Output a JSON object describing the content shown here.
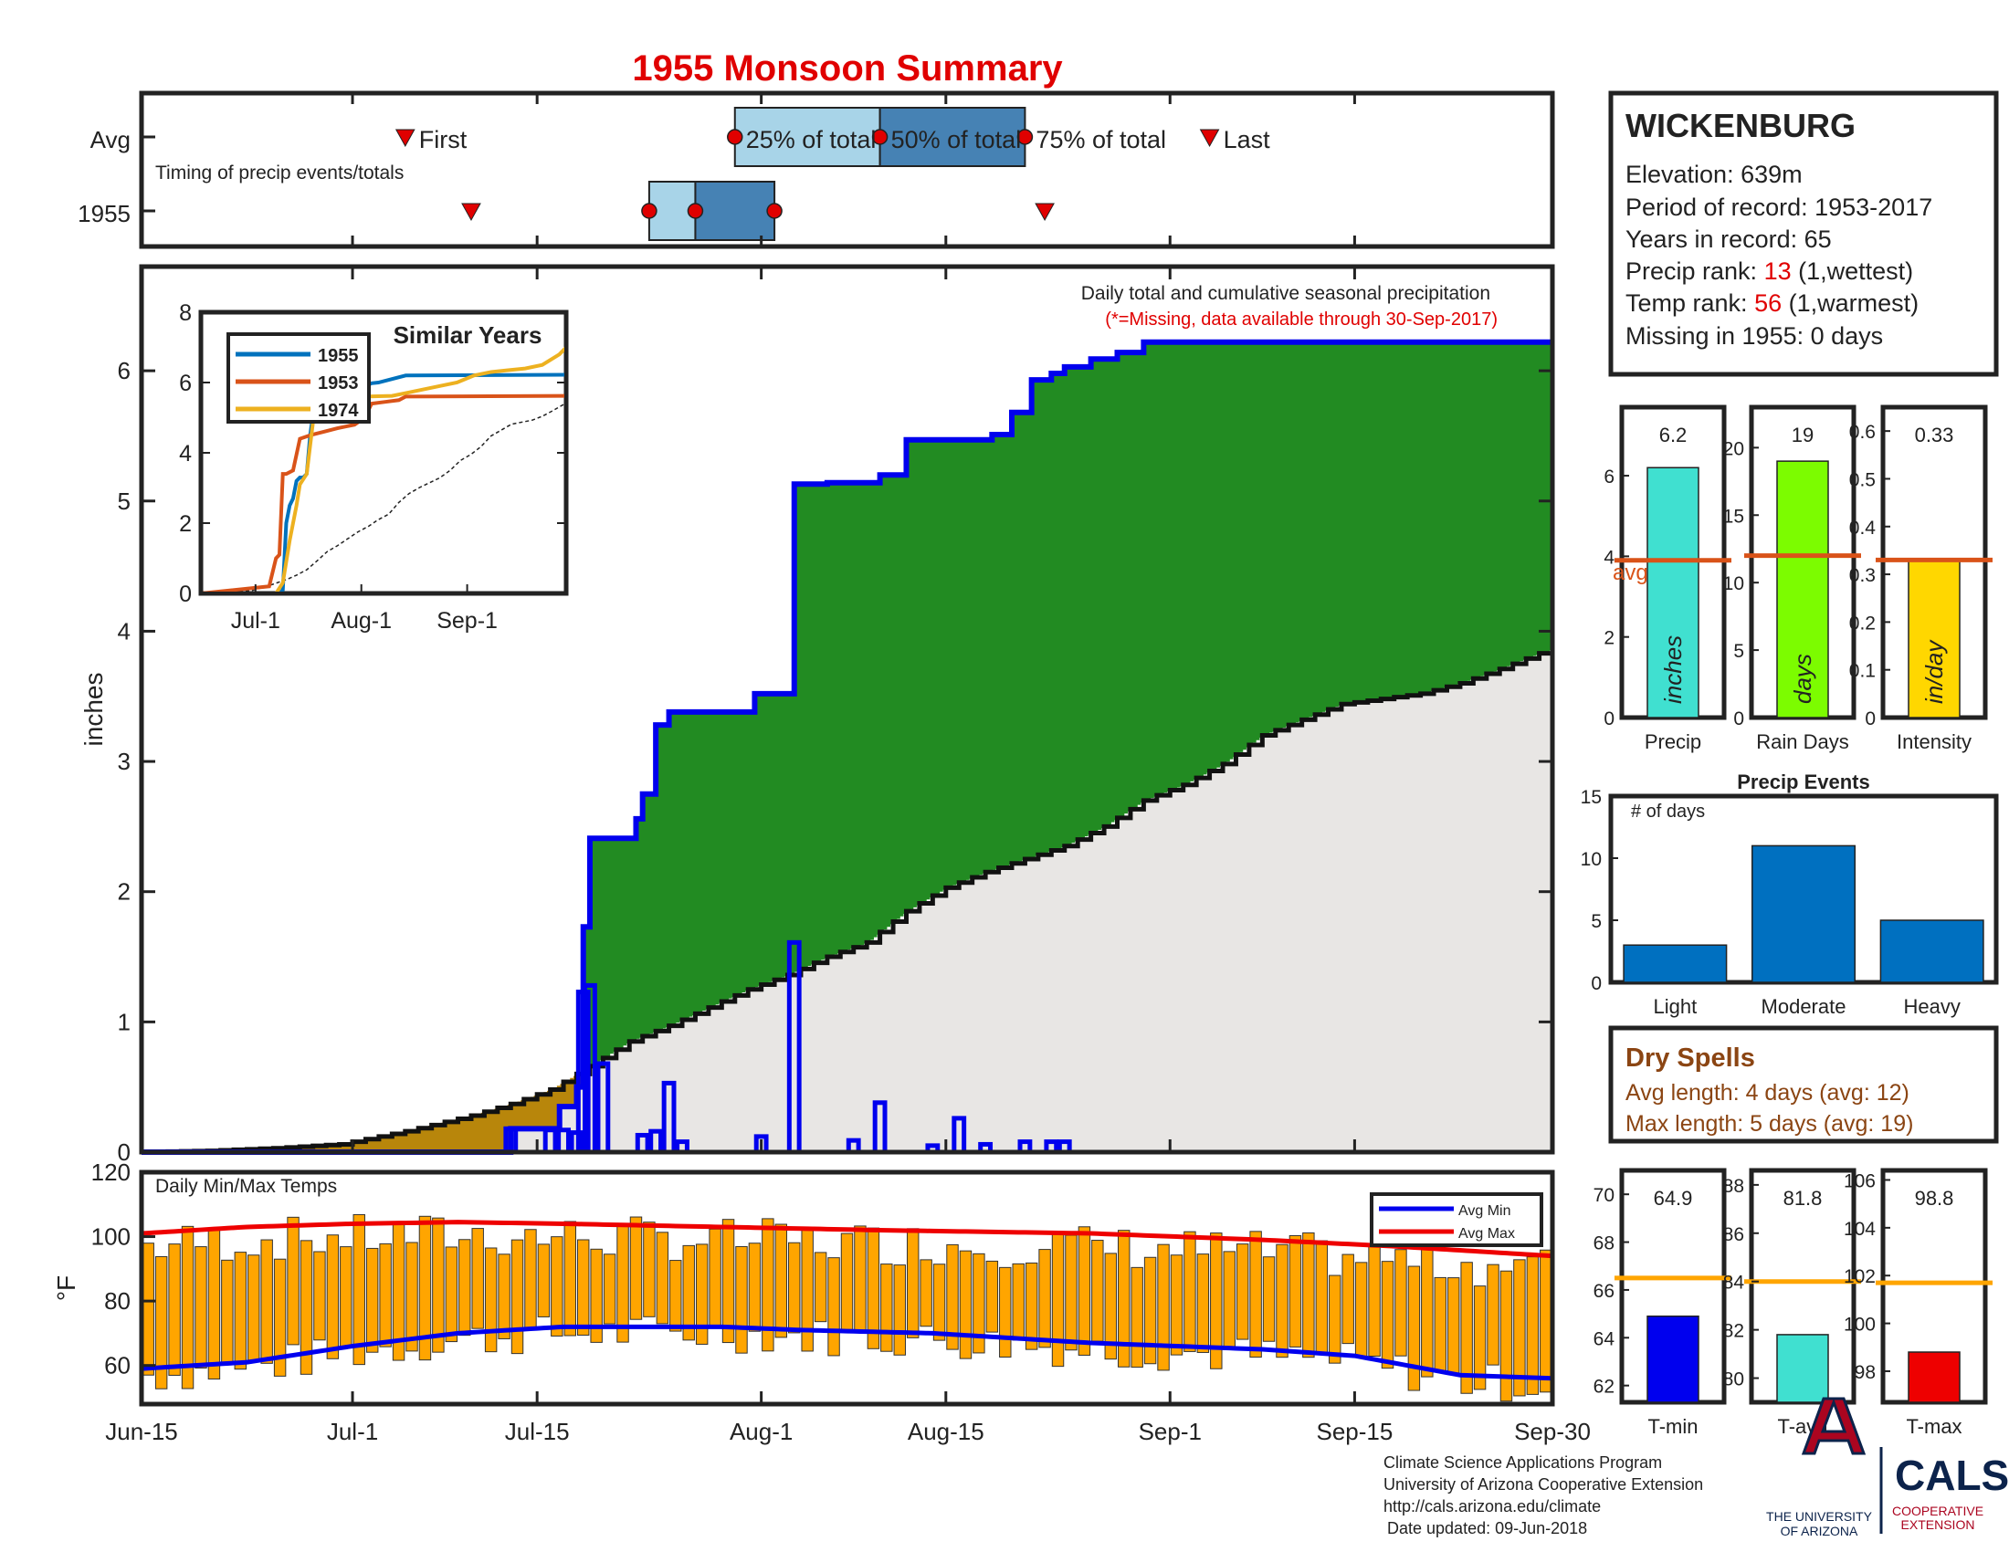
{
  "title": "1955 Monsoon Summary",
  "colors": {
    "green": "#228b22",
    "gray": "#e8e6e4",
    "brown": "#b8860b",
    "blue": "#0000ee",
    "orange": "#ffa500",
    "avgred": "#ee0000",
    "light": "#a8d4e8",
    "dark": "#4682b4",
    "barblue": "#0070c0",
    "avgline": "#d95319"
  },
  "timing": {
    "rows": [
      "Avg",
      "1955"
    ],
    "note": "Timing of precip events/totals",
    "avg_labels": {
      "first": "First",
      "p25": "25% of total",
      "p50": "50% of total",
      "p75": "75% of total",
      "last": "Last"
    },
    "avg_days": {
      "first": 20,
      "p25": 45,
      "p50": 56,
      "p75": 67,
      "last": 81
    },
    "y1955_days": {
      "first": 25,
      "p25": 38.5,
      "p50": 42,
      "p75": 48,
      "last": 68.5
    },
    "box_avg": [
      45,
      67
    ],
    "box_1955": [
      38.5,
      48
    ]
  },
  "station": {
    "name": "WICKENBURG",
    "elevation": "Elevation: 639m",
    "period": "Period of record: 1953-2017",
    "years": "Years in record: 65",
    "precip_rank_label": "Precip rank: ",
    "precip_rank": "13",
    "precip_rank_note": " (1,wettest)",
    "temp_rank_label": "Temp rank: ",
    "temp_rank": "56",
    "temp_rank_note": " (1,warmest)",
    "missing": "Missing in 1955: 0 days"
  },
  "main": {
    "note": "Daily total and cumulative seasonal precipitation",
    "note_missing": "(*=Missing, data available through 30-Sep-2017)",
    "ylabel": "inches",
    "ylim": [
      0,
      6.8
    ],
    "yticks": [
      0,
      1,
      2,
      3,
      4,
      5,
      6
    ],
    "xticks": [
      {
        "d": 0,
        "l": "Jun-15"
      },
      {
        "d": 16,
        "l": "Jul-1"
      },
      {
        "d": 30,
        "l": "Jul-15"
      },
      {
        "d": 47,
        "l": "Aug-1"
      },
      {
        "d": 61,
        "l": "Aug-15"
      },
      {
        "d": 78,
        "l": "Sep-1"
      },
      {
        "d": 92,
        "l": "Sep-15"
      },
      {
        "d": 107,
        "l": "Sep-30"
      }
    ]
  },
  "chart_data": {
    "type": "area",
    "days_total": 107,
    "cum_1955": [
      [
        0,
        0
      ],
      [
        28,
        0
      ],
      [
        28,
        0.18
      ],
      [
        31.7,
        0.18
      ],
      [
        31.7,
        0.35
      ],
      [
        33,
        0.35
      ],
      [
        33,
        0.5
      ],
      [
        33.5,
        0.5
      ],
      [
        33.5,
        1.73
      ],
      [
        34,
        1.73
      ],
      [
        34,
        2.41
      ],
      [
        37.5,
        2.41
      ],
      [
        37.5,
        2.56
      ],
      [
        38,
        2.56
      ],
      [
        38,
        2.75
      ],
      [
        39,
        2.75
      ],
      [
        39,
        3.28
      ],
      [
        40,
        3.28
      ],
      [
        40,
        3.38
      ],
      [
        46.5,
        3.38
      ],
      [
        46.5,
        3.52
      ],
      [
        49.5,
        3.52
      ],
      [
        49.5,
        5.13
      ],
      [
        52,
        5.13
      ],
      [
        52,
        5.14
      ],
      [
        56,
        5.14
      ],
      [
        56,
        5.2
      ],
      [
        58,
        5.2
      ],
      [
        58,
        5.47
      ],
      [
        64.5,
        5.47
      ],
      [
        64.5,
        5.51
      ],
      [
        66,
        5.51
      ],
      [
        66,
        5.68
      ],
      [
        67.5,
        5.68
      ],
      [
        67.5,
        5.93
      ],
      [
        69,
        5.93
      ],
      [
        69,
        5.98
      ],
      [
        70,
        5.98
      ],
      [
        70,
        6.03
      ],
      [
        72,
        6.03
      ],
      [
        72,
        6.09
      ],
      [
        74,
        6.09
      ],
      [
        74,
        6.14
      ],
      [
        76,
        6.14
      ],
      [
        76,
        6.22
      ],
      [
        107,
        6.22
      ]
    ],
    "cum_avg": [
      [
        0,
        0
      ],
      [
        5,
        0.01
      ],
      [
        10,
        0.03
      ],
      [
        15,
        0.06
      ],
      [
        20,
        0.16
      ],
      [
        25,
        0.28
      ],
      [
        28,
        0.37
      ],
      [
        31,
        0.48
      ],
      [
        34,
        0.66
      ],
      [
        37,
        0.85
      ],
      [
        40,
        0.97
      ],
      [
        43,
        1.11
      ],
      [
        46,
        1.25
      ],
      [
        49,
        1.36
      ],
      [
        52,
        1.5
      ],
      [
        55,
        1.61
      ],
      [
        58,
        1.85
      ],
      [
        61,
        2.03
      ],
      [
        64,
        2.15
      ],
      [
        67,
        2.25
      ],
      [
        70,
        2.35
      ],
      [
        73,
        2.5
      ],
      [
        76,
        2.7
      ],
      [
        79,
        2.82
      ],
      [
        82,
        2.98
      ],
      [
        85,
        3.2
      ],
      [
        88,
        3.32
      ],
      [
        91,
        3.44
      ],
      [
        94,
        3.48
      ],
      [
        97,
        3.52
      ],
      [
        100,
        3.6
      ],
      [
        103,
        3.71
      ],
      [
        106,
        3.83
      ],
      [
        107,
        3.86
      ]
    ],
    "daily_1955": [
      [
        28,
        0.18
      ],
      [
        31,
        0.17
      ],
      [
        32,
        0.17
      ],
      [
        33,
        0.15
      ],
      [
        33.5,
        1.23
      ],
      [
        34,
        1.28
      ],
      [
        35,
        0.68
      ],
      [
        38,
        0.13
      ],
      [
        39,
        0.16
      ],
      [
        40,
        0.53
      ],
      [
        41,
        0.08
      ],
      [
        47,
        0.12
      ],
      [
        49.5,
        1.61
      ],
      [
        54,
        0.09
      ],
      [
        56,
        0.38
      ],
      [
        60,
        0.05
      ],
      [
        62,
        0.26
      ],
      [
        64,
        0.06
      ],
      [
        67,
        0.08
      ],
      [
        69,
        0.08
      ],
      [
        70,
        0.08
      ]
    ],
    "temps": {
      "ylim": [
        48,
        120
      ],
      "yticks": [
        60,
        80,
        100,
        120
      ],
      "ylabel": "°F",
      "label": "Daily Min/Max Temps",
      "legend": [
        "Avg Min",
        "Avg Max"
      ],
      "avg_min_pts": [
        [
          0,
          59
        ],
        [
          8,
          61
        ],
        [
          16,
          66
        ],
        [
          24,
          70
        ],
        [
          32,
          72
        ],
        [
          44,
          72
        ],
        [
          50,
          71
        ],
        [
          60,
          70
        ],
        [
          72,
          67
        ],
        [
          85,
          65
        ],
        [
          92,
          63
        ],
        [
          100,
          57
        ],
        [
          107,
          56
        ]
      ],
      "avg_max_pts": [
        [
          0,
          101
        ],
        [
          8,
          103
        ],
        [
          16,
          104
        ],
        [
          24,
          104.5
        ],
        [
          32,
          104
        ],
        [
          44,
          103
        ],
        [
          56,
          102
        ],
        [
          72,
          101
        ],
        [
          85,
          99
        ],
        [
          95,
          97
        ],
        [
          107,
          94
        ]
      ]
    },
    "similar_years": {
      "title": "Similar Years",
      "series": [
        {
          "name": "1955",
          "color": "#0072bd",
          "pts": [
            [
              0,
              0
            ],
            [
              23,
              0
            ],
            [
              24,
              0.1
            ],
            [
              25,
              2
            ],
            [
              26,
              2.5
            ],
            [
              27,
              2.7
            ],
            [
              28,
              3.2
            ],
            [
              29,
              3.3
            ],
            [
              30,
              3.3
            ],
            [
              31,
              3.4
            ],
            [
              32,
              4.5
            ],
            [
              33,
              5.2
            ],
            [
              34,
              5.2
            ],
            [
              38,
              5.3
            ],
            [
              40,
              5.5
            ],
            [
              44,
              5.7
            ],
            [
              46,
              5.8
            ],
            [
              50,
              5.98
            ],
            [
              52,
              6.0
            ],
            [
              60,
              6.2
            ],
            [
              107,
              6.22
            ]
          ]
        },
        {
          "name": "1953",
          "color": "#d95319",
          "pts": [
            [
              0,
              0
            ],
            [
              20,
              0.2
            ],
            [
              22,
              1.0
            ],
            [
              23,
              1.1
            ],
            [
              24,
              3.4
            ],
            [
              25,
              3.4
            ],
            [
              27,
              3.5
            ],
            [
              29,
              4.4
            ],
            [
              32,
              4.5
            ],
            [
              34,
              4.55
            ],
            [
              36,
              4.6
            ],
            [
              40,
              4.7
            ],
            [
              45,
              4.8
            ],
            [
              48,
              5.0
            ],
            [
              50,
              5.4
            ],
            [
              54,
              5.45
            ],
            [
              58,
              5.5
            ],
            [
              60,
              5.6
            ],
            [
              107,
              5.62
            ]
          ]
        },
        {
          "name": "1974",
          "color": "#edb120",
          "pts": [
            [
              0,
              0
            ],
            [
              22,
              0
            ],
            [
              24,
              0.3
            ],
            [
              26,
              1.5
            ],
            [
              28,
              2.5
            ],
            [
              29,
              3.1
            ],
            [
              31,
              3.4
            ],
            [
              32,
              4.2
            ],
            [
              33,
              5.0
            ],
            [
              35,
              5.5
            ],
            [
              40,
              5.6
            ],
            [
              48,
              5.6
            ],
            [
              56,
              5.62
            ],
            [
              60,
              5.7
            ],
            [
              65,
              5.8
            ],
            [
              70,
              5.9
            ],
            [
              75,
              6.0
            ],
            [
              80,
              6.2
            ],
            [
              85,
              6.3
            ],
            [
              90,
              6.35
            ],
            [
              95,
              6.4
            ],
            [
              100,
              6.5
            ],
            [
              105,
              6.8
            ],
            [
              107,
              7.0
            ]
          ]
        }
      ],
      "xticks": [
        {
          "d": 16,
          "l": "Jul-1"
        },
        {
          "d": 47,
          "l": "Aug-1"
        },
        {
          "d": 78,
          "l": "Sep-1"
        }
      ],
      "yticks": [
        0,
        2,
        4,
        6,
        8
      ]
    },
    "bars3": [
      {
        "label": "Precip",
        "value": 6.2,
        "value_text": "6.2",
        "avg": 3.9,
        "avg_label": "avg",
        "unit": "inches",
        "color": "#40e0d0",
        "ylim": [
          0,
          7.7
        ],
        "yticks": [
          0,
          2,
          4,
          6
        ]
      },
      {
        "label": "Rain Days",
        "value": 19,
        "value_text": "19",
        "avg": 12,
        "unit": "days",
        "color": "#7cfc00",
        "ylim": [
          0,
          23
        ],
        "yticks": [
          0,
          5,
          10,
          15,
          20
        ]
      },
      {
        "label": "Intensity",
        "value": 0.33,
        "value_text": "0.33",
        "avg": 0.33,
        "unit": "in/day",
        "color": "#ffd700",
        "ylim": [
          0,
          0.65
        ],
        "yticks": [
          0,
          0.1,
          0.2,
          0.3,
          0.4,
          0.5,
          0.6
        ]
      }
    ],
    "events": {
      "title": "Precip Events",
      "ylabel": "# of days",
      "categories": [
        "Light",
        "Moderate",
        "Heavy"
      ],
      "values": [
        3,
        11,
        5
      ],
      "ylim": [
        0,
        15
      ],
      "yticks": [
        0,
        5,
        10,
        15
      ]
    },
    "temps3": [
      {
        "label": "T-min",
        "value": 64.9,
        "value_text": "64.9",
        "avg": 66.5,
        "color": "#0000ee",
        "ylim": [
          61.3,
          71
        ],
        "yticks": [
          62,
          64,
          66,
          68,
          70
        ]
      },
      {
        "label": "T-avg",
        "value": 81.8,
        "value_text": "81.8",
        "avg": 84,
        "color": "#40e0d0",
        "ylim": [
          79,
          88.6
        ],
        "yticks": [
          80,
          82,
          84,
          86,
          88
        ]
      },
      {
        "label": "T-max",
        "value": 98.8,
        "value_text": "98.8",
        "avg": 101.7,
        "color": "#ee0000",
        "ylim": [
          96.7,
          106.4
        ],
        "yticks": [
          98,
          100,
          102,
          104,
          106
        ]
      }
    ]
  },
  "dry": {
    "title": "Dry Spells",
    "avg": "Avg length: 4 days (avg: 12)",
    "max": "Max length: 5 days (avg: 19)"
  },
  "footer": {
    "l1": "Climate Science Applications Program",
    "l2": "University of Arizona Cooperative Extension",
    "l3": "http://cals.arizona.edu/climate",
    "l4": "Date updated: 09-Jun-2018"
  },
  "logos": {
    "ua1": "THE UNIVERSITY",
    "ua2": "OF ARIZONA",
    "cals": "CALS",
    "cals2": "COOPERATIVE",
    "cals3": "EXTENSION"
  }
}
